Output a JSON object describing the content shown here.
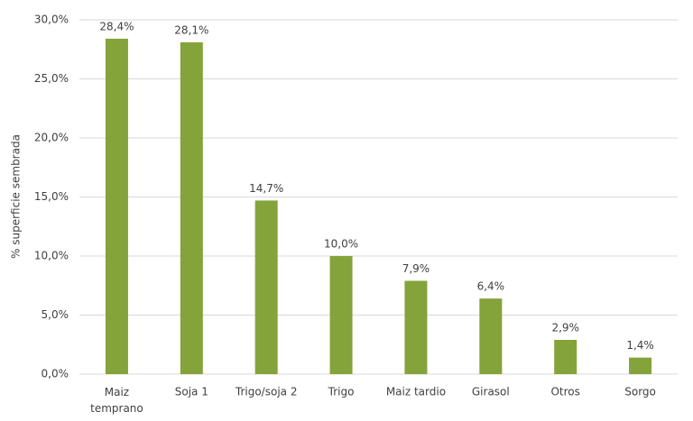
{
  "chart_data": {
    "type": "bar",
    "y_label": "% superficie sembrada",
    "categories": [
      "Maiz temprano",
      "Soja 1",
      "Trigo/soja 2",
      "Trigo",
      "Maiz tardio",
      "Girasol",
      "Otros",
      "Sorgo"
    ],
    "values": [
      28.4,
      28.1,
      14.7,
      10.0,
      7.9,
      6.4,
      2.9,
      1.4
    ],
    "value_labels": [
      "28,4%",
      "28,1%",
      "14,7%",
      "10,0%",
      "7,9%",
      "6,4%",
      "2,9%",
      "1,4%"
    ],
    "color": "#84a33a",
    "ylim": [
      0,
      30
    ],
    "yticks": [
      {
        "value": 0,
        "label": "0,0%"
      },
      {
        "value": 5,
        "label": "5,0%"
      },
      {
        "value": 10,
        "label": "10,0%"
      },
      {
        "value": 15,
        "label": "15,0%"
      },
      {
        "value": 20,
        "label": "20,0%"
      },
      {
        "value": 25,
        "label": "25,0%"
      },
      {
        "value": 30,
        "label": "30,0%"
      }
    ],
    "grid": true
  }
}
